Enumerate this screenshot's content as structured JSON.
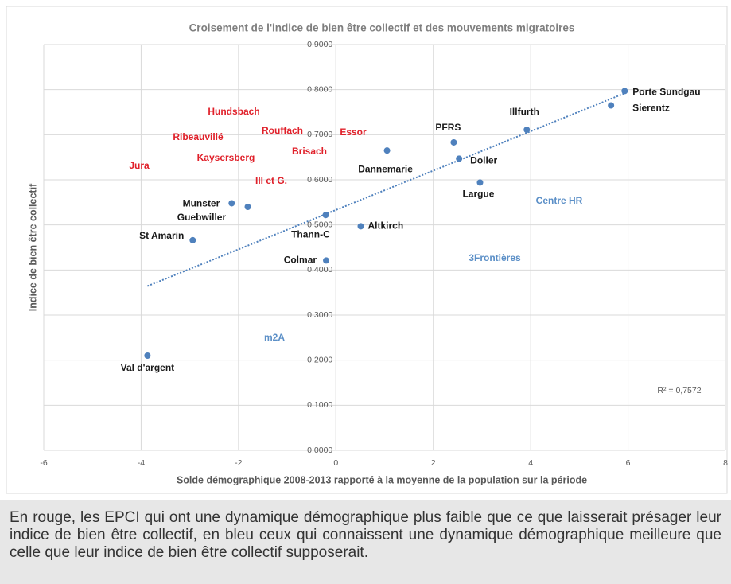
{
  "chart_data": {
    "type": "scatter",
    "title": "Croisement de l'indice de bien être collectif et des mouvements migratoires",
    "x_label": "Solde démographique 2008-2013 rapporté à la moyenne de la population sur la période",
    "y_label": "Indice de bien être collectif",
    "xlim": [
      -6,
      8
    ],
    "xticks": [
      -6,
      -4,
      -2,
      0,
      2,
      4,
      6,
      8
    ],
    "ylim": [
      0,
      0.9
    ],
    "yticks": [
      {
        "value": 0,
        "label": "0,0000"
      },
      {
        "value": 0.1,
        "label": "0,1000"
      },
      {
        "value": 0.2,
        "label": "0,2000"
      },
      {
        "value": 0.3,
        "label": "0,3000"
      },
      {
        "value": 0.4,
        "label": "0,4000"
      },
      {
        "value": 0.5,
        "label": "0,5000"
      },
      {
        "value": 0.6,
        "label": "0,6000"
      },
      {
        "value": 0.7,
        "label": "0,7000"
      },
      {
        "value": 0.8,
        "label": "0,8000"
      },
      {
        "value": 0.9,
        "label": "0,9000"
      }
    ],
    "grid": true,
    "trendline": true,
    "series": [
      {
        "color": "#4f81bd",
        "labels": [
          "Porte Sundgau",
          "Sierentz",
          "Illfurth",
          "PFRS",
          "Doller",
          "Dannemarie",
          "Largue",
          "Thann-C",
          "Altkirch",
          "Colmar",
          "Munster",
          "Guebwiller",
          "St Amarin",
          "Val d'argent"
        ],
        "x": [
          5.93,
          5.65,
          3.92,
          2.42,
          2.53,
          1.05,
          2.96,
          -0.21,
          0.51,
          -0.2,
          -2.14,
          -1.81,
          -2.94,
          -3.87
        ],
        "values": [
          0.797,
          0.765,
          0.711,
          0.683,
          0.647,
          0.665,
          0.594,
          0.522,
          0.497,
          0.421,
          0.548,
          0.54,
          0.466,
          0.21
        ]
      }
    ],
    "annotations": [
      {
        "text": "Hundsbach",
        "color": "#e0202a"
      },
      {
        "text": "Ribeauvillé",
        "color": "#e0202a"
      },
      {
        "text": "Rouffach",
        "color": "#e0202a"
      },
      {
        "text": "Essor",
        "color": "#e0202a"
      },
      {
        "text": "Brisach",
        "color": "#e0202a"
      },
      {
        "text": "Kaysersberg",
        "color": "#e0202a"
      },
      {
        "text": "Jura",
        "color": "#e0202a"
      },
      {
        "text": "Ill et G.",
        "color": "#e0202a"
      },
      {
        "text": "Centre HR",
        "color": "#5b8fc7"
      },
      {
        "text": "3Frontières",
        "color": "#5b8fc7"
      },
      {
        "text": "m2A",
        "color": "#5b8fc7"
      },
      {
        "text": "R² = 0,7572",
        "color": "#595959"
      }
    ]
  },
  "caption": "En rouge, les EPCI qui ont une dynamique démographique plus faible que ce que laisserait présager leur indice de bien être collectif, en bleu ceux qui connaissent une dynamique démographique meilleure que celle que leur indice de bien être collectif supposerait."
}
